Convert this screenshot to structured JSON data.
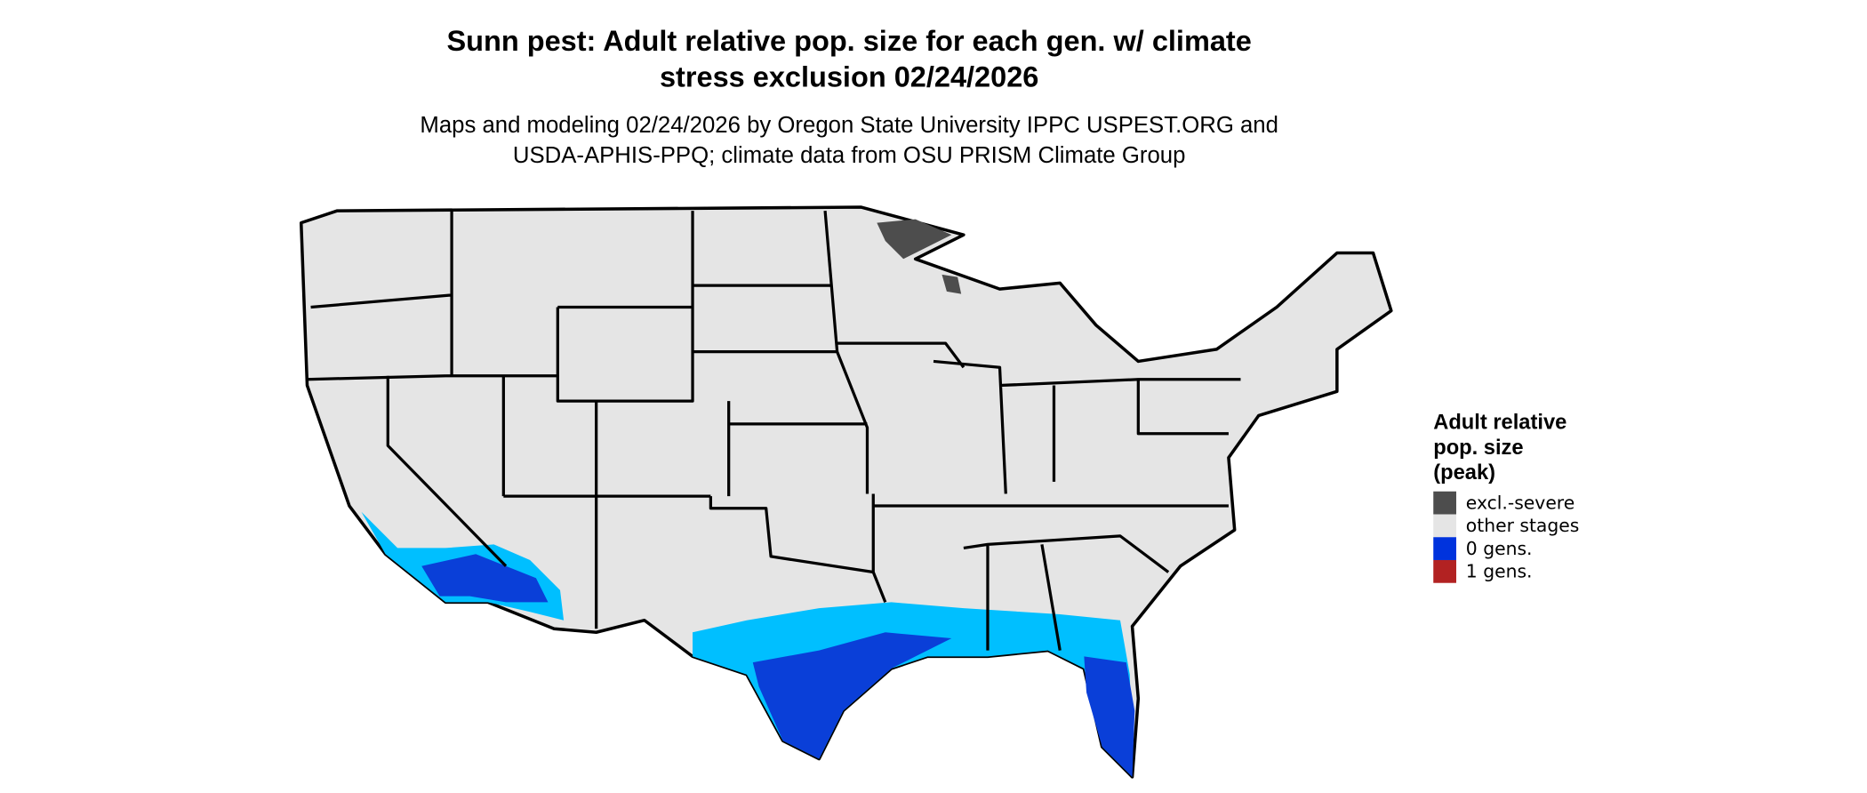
{
  "map": {
    "title": [
      "Sunn pest: Adult relative pop. size for each gen. w/ climate",
      "stress exclusion 02/24/2026"
    ],
    "subtitle": [
      "Maps and modeling 02/24/2026 by Oregon State University IPPC USPEST.ORG and",
      "USDA-APHIS-PPQ; climate data from OSU PRISM Climate Group"
    ],
    "legend": {
      "title": [
        "Adult relative",
        "pop. size",
        "(peak)"
      ],
      "items": [
        {
          "label": "excl.-severe",
          "color": "#4d4d4d"
        },
        {
          "label": "other stages",
          "color": "#e5e5e5"
        },
        {
          "label": "0 gens.",
          "color": "#0033dd"
        },
        {
          "label": "1 gens.",
          "color": "#b22222"
        }
      ]
    }
  }
}
